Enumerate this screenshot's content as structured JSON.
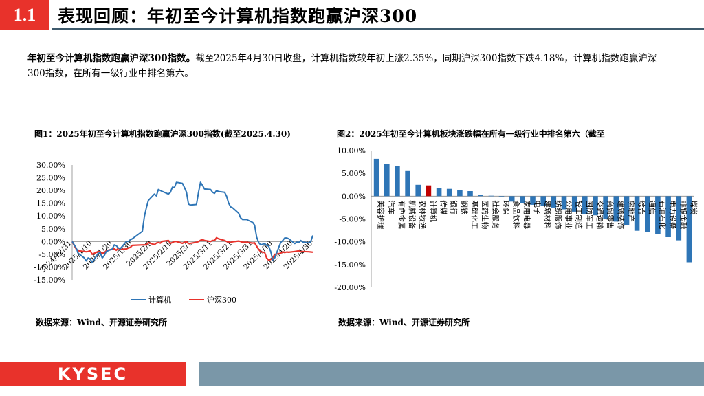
{
  "header": {
    "section": "1.1",
    "title": "表现回顾：年初至今计算机指数跑赢沪深300"
  },
  "summary": {
    "lead": "年初至今计算机指数跑赢沪深300指数。",
    "body": "截至2025年4月30日收盘，计算机指数较年初上涨2.35%，同期沪深300指数下跌4.18%，计算机指数跑赢沪深300指数，在所有一级行业中排名第六。"
  },
  "figure1": {
    "title": "图1：2025年初至今计算机指数跑赢沪深300指数(截至2025.4.30)",
    "source": "数据来源：Wind、开源证券研究所"
  },
  "figure2": {
    "title": "图2：2025年初至今计算机板块涨跌幅在所有一级行业中排名第六（截至",
    "source": "数据来源：Wind、开源证券研究所"
  },
  "footer": {
    "logo": "KYSEC"
  },
  "colors": {
    "accent": "#E8322B",
    "computer": "#2E75B6",
    "hs300": "#E8322B",
    "bar": "#2E75B6",
    "highlight": "#C00000"
  },
  "chart_data": [
    {
      "type": "line",
      "y_ticks": [
        "30.00%",
        "25.00%",
        "20.00%",
        "15.00%",
        "10.00%",
        "5.00%",
        "0.00%",
        "-5.00%",
        "-10.00%",
        "-15.00%"
      ],
      "ylim": [
        -15,
        30
      ],
      "x_ticks": [
        "2024/12/31",
        "2025/1/10",
        "2025/1/20",
        "2025/1/30",
        "2025/2/9",
        "2025/2/19",
        "2025/3/1",
        "2025/3/11",
        "2025/3/21",
        "2025/3/31",
        "2025/4/10",
        "2025/4/20",
        "2025/4/30"
      ],
      "x_tick_positions": [
        0,
        10,
        20,
        30,
        40,
        50,
        60,
        70,
        80,
        90,
        100,
        110,
        120
      ],
      "series": [
        {
          "name": "计算机",
          "x": [
            0,
            2,
            3,
            6,
            7,
            8,
            9,
            10,
            13,
            14,
            15,
            16,
            17,
            20,
            21,
            22,
            23,
            24,
            27,
            28,
            29,
            30,
            35,
            36,
            37,
            38,
            41,
            42,
            43,
            44,
            45,
            48,
            49,
            50,
            51,
            52,
            55,
            56,
            57,
            58,
            59,
            62,
            63,
            64,
            65,
            66,
            69,
            70,
            71,
            72,
            73,
            76,
            77,
            78,
            79,
            80,
            83,
            84,
            85,
            86,
            87,
            90,
            91,
            92,
            93,
            94,
            96,
            97,
            98,
            99,
            100,
            101,
            104,
            105,
            106,
            107,
            108,
            111,
            112,
            113,
            114,
            115,
            118,
            119,
            120
          ],
          "y": [
            0,
            -2.5,
            -4.6,
            -6.4,
            -7.6,
            -6.4,
            -6.8,
            -8.2,
            -4.6,
            -4.4,
            -6.4,
            -5.5,
            -3.9,
            -2.9,
            -1.3,
            -1.6,
            -2.5,
            -2.8,
            0.0,
            0.0,
            0.7,
            1.1,
            4.0,
            9.7,
            13.2,
            16.1,
            18.6,
            17.9,
            20.4,
            20.0,
            19.6,
            18.6,
            19.3,
            21.3,
            21.2,
            23.2,
            22.8,
            21.2,
            19.3,
            14.7,
            14.3,
            14.5,
            19.3,
            23.2,
            22.0,
            20.6,
            20.4,
            19.3,
            18.9,
            20.0,
            19.6,
            19.3,
            17.8,
            15.1,
            13.6,
            13.2,
            11.1,
            9.3,
            8.6,
            8.6,
            8.6,
            7.5,
            6.4,
            1.8,
            -0.4,
            -1.3,
            -0.8,
            -1.5,
            -1.8,
            -3.9,
            -7.2,
            -6.4,
            -0.4,
            0.4,
            1.4,
            1.4,
            1.1,
            -0.8,
            -0.2,
            -0.4,
            0.4,
            -0.2,
            -0.5,
            0.0,
            2.35
          ]
        },
        {
          "name": "沪深300",
          "x": [
            0,
            2,
            3,
            6,
            7,
            8,
            9,
            10,
            13,
            14,
            15,
            16,
            17,
            20,
            21,
            22,
            23,
            24,
            27,
            28,
            29,
            30,
            35,
            36,
            37,
            38,
            41,
            42,
            43,
            44,
            45,
            48,
            49,
            50,
            51,
            52,
            55,
            56,
            57,
            58,
            59,
            62,
            63,
            64,
            65,
            66,
            69,
            70,
            71,
            72,
            73,
            76,
            77,
            78,
            79,
            80,
            83,
            84,
            85,
            86,
            87,
            90,
            91,
            92,
            93,
            94,
            96,
            97,
            98,
            99,
            100,
            101,
            104,
            105,
            106,
            107,
            108,
            111,
            112,
            113,
            114,
            115,
            118,
            119,
            120
          ],
          "y": [
            0,
            -2.9,
            -3.6,
            -3.9,
            -4.0,
            -3.9,
            -3.6,
            -5.0,
            -3.9,
            -4.1,
            -4.6,
            -4.5,
            -3.6,
            -3.0,
            -2.8,
            -3.4,
            -2.6,
            -3.1,
            -2.9,
            -2.5,
            -2.3,
            -1.5,
            -1.3,
            -1.3,
            -1.3,
            -0.4,
            -1.2,
            -0.6,
            -0.4,
            -0.6,
            0.1,
            0.4,
            -0.7,
            -0.4,
            0.0,
            0.0,
            -0.7,
            -0.3,
            -0.1,
            -0.8,
            -0.7,
            -0.3,
            0.0,
            0.5,
            0.7,
            0.4,
            0.0,
            0.4,
            0.4,
            1.5,
            1.1,
            0.4,
            0.0,
            -0.1,
            -0.4,
            -0.1,
            0.2,
            0.0,
            -0.3,
            -0.3,
            -0.3,
            -0.6,
            -0.5,
            -1.8,
            -3.1,
            -4.0,
            -4.3,
            -6.4,
            -7.3,
            -7.0,
            -6.4,
            -5.0,
            -4.6,
            -4.0,
            -4.3,
            -4.1,
            -4.2,
            -3.9,
            -3.8,
            -3.6,
            -4.0,
            -3.9,
            -4.0,
            -4.1,
            -4.18
          ]
        }
      ],
      "legend": "bottom"
    },
    {
      "type": "bar",
      "y_ticks": [
        "10.00%",
        "5.00%",
        "0.00%",
        "-5.00%",
        "-10.00%",
        "-15.00%",
        "-20.00%"
      ],
      "ylim": [
        -20,
        10
      ],
      "categories": [
        "美容护理",
        "汽车",
        "有色金属",
        "机械设备",
        "农林牧渔",
        "计算机",
        "传媒",
        "银行",
        "钢铁",
        "基础化工",
        "医药生物",
        "社会服务",
        "环保",
        "食品饮料",
        "家用电器",
        "电子",
        "建筑材料",
        "纺织服饰",
        "公用事业",
        "轻工制造",
        "国防军工",
        "交通运输",
        "商贸零售",
        "建筑装饰",
        "房地产",
        "综合",
        "通信",
        "石油石化",
        "电力设备",
        "非银金融",
        "煤炭"
      ],
      "values": [
        8.2,
        7.1,
        6.6,
        5.5,
        2.5,
        2.35,
        1.8,
        1.6,
        1.4,
        1.1,
        0.3,
        0.1,
        0.0,
        -1.2,
        -1.5,
        -1.9,
        -2.2,
        -2.5,
        -2.9,
        -3.4,
        -3.9,
        -4.2,
        -5.0,
        -5.6,
        -6.3,
        -7.6,
        -7.8,
        -8.4,
        -9.0,
        -9.7,
        -14.5
      ],
      "highlight": "计算机"
    }
  ]
}
